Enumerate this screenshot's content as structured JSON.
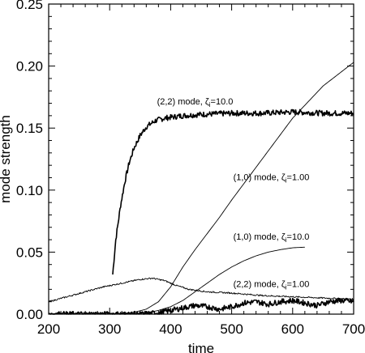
{
  "chart_data": {
    "type": "line",
    "title": "",
    "xlabel": "time",
    "ylabel": "mode strength",
    "xlim": [
      200,
      700
    ],
    "ylim": [
      0,
      0.25
    ],
    "xticks": [
      "200",
      "300",
      "400",
      "500",
      "600",
      "700"
    ],
    "yticks": [
      "0.00",
      "0.05",
      "0.10",
      "0.15",
      "0.20",
      "0.25"
    ],
    "annotations": [
      {
        "mode": "(2,2) mode, ",
        "zeta": "ζ",
        "sub": "i",
        "value": "=10.0",
        "x": 440,
        "y": 0.169
      },
      {
        "mode": "(1,0) mode, ",
        "zeta": "ζ",
        "sub": "i",
        "value": "=1.00",
        "x": 565,
        "y": 0.108
      },
      {
        "mode": "(1,0) mode, ",
        "zeta": "ζ",
        "sub": "i",
        "value": "=10.0",
        "x": 565,
        "y": 0.06
      },
      {
        "mode": "(2,2) mode, ",
        "zeta": "ζ",
        "sub": "i",
        "value": "=1.00",
        "x": 565,
        "y": 0.022
      }
    ],
    "series": [
      {
        "style": "noisy-thick",
        "x": [
          305,
          310,
          318,
          325,
          332,
          340,
          350,
          360,
          375,
          390,
          420,
          450,
          500,
          550,
          600,
          650,
          700
        ],
        "values": [
          0.032,
          0.06,
          0.088,
          0.107,
          0.122,
          0.134,
          0.144,
          0.151,
          0.156,
          0.158,
          0.16,
          0.161,
          0.162,
          0.162,
          0.163,
          0.162,
          0.162
        ]
      },
      {
        "style": "smooth-thin",
        "x": [
          200,
          300,
          320,
          340,
          360,
          380,
          400,
          420,
          440,
          460,
          480,
          500,
          550,
          600,
          650,
          700
        ],
        "values": [
          0.0,
          0.0,
          0.0005,
          0.0015,
          0.004,
          0.01,
          0.022,
          0.038,
          0.052,
          0.065,
          0.078,
          0.092,
          0.125,
          0.158,
          0.184,
          0.203
        ]
      },
      {
        "style": "smooth-thin",
        "x": [
          200,
          300,
          330,
          360,
          380,
          400,
          420,
          440,
          460,
          480,
          500,
          520,
          540,
          560,
          580,
          600,
          620
        ],
        "values": [
          0.0,
          0.0,
          0.0,
          0.001,
          0.003,
          0.006,
          0.011,
          0.018,
          0.025,
          0.032,
          0.038,
          0.043,
          0.047,
          0.05,
          0.052,
          0.0535,
          0.054
        ]
      },
      {
        "style": "noisy-thin",
        "x": [
          200,
          230,
          260,
          290,
          320,
          350,
          370,
          390,
          410,
          430,
          460,
          500,
          550,
          600,
          650,
          700
        ],
        "values": [
          0.01,
          0.014,
          0.018,
          0.022,
          0.025,
          0.028,
          0.029,
          0.027,
          0.023,
          0.02,
          0.018,
          0.017,
          0.015,
          0.014,
          0.013,
          0.012
        ]
      },
      {
        "style": "noisy-thick",
        "x": [
          200,
          350,
          380,
          400,
          420,
          440,
          460,
          480,
          500,
          520,
          540,
          560,
          580,
          600,
          620,
          640,
          660,
          680,
          700
        ],
        "values": [
          0.0,
          0.0,
          0.001,
          0.003,
          0.005,
          0.007,
          0.006,
          0.004,
          0.006,
          0.009,
          0.01,
          0.008,
          0.01,
          0.011,
          0.009,
          0.007,
          0.01,
          0.011,
          0.01
        ]
      }
    ]
  }
}
